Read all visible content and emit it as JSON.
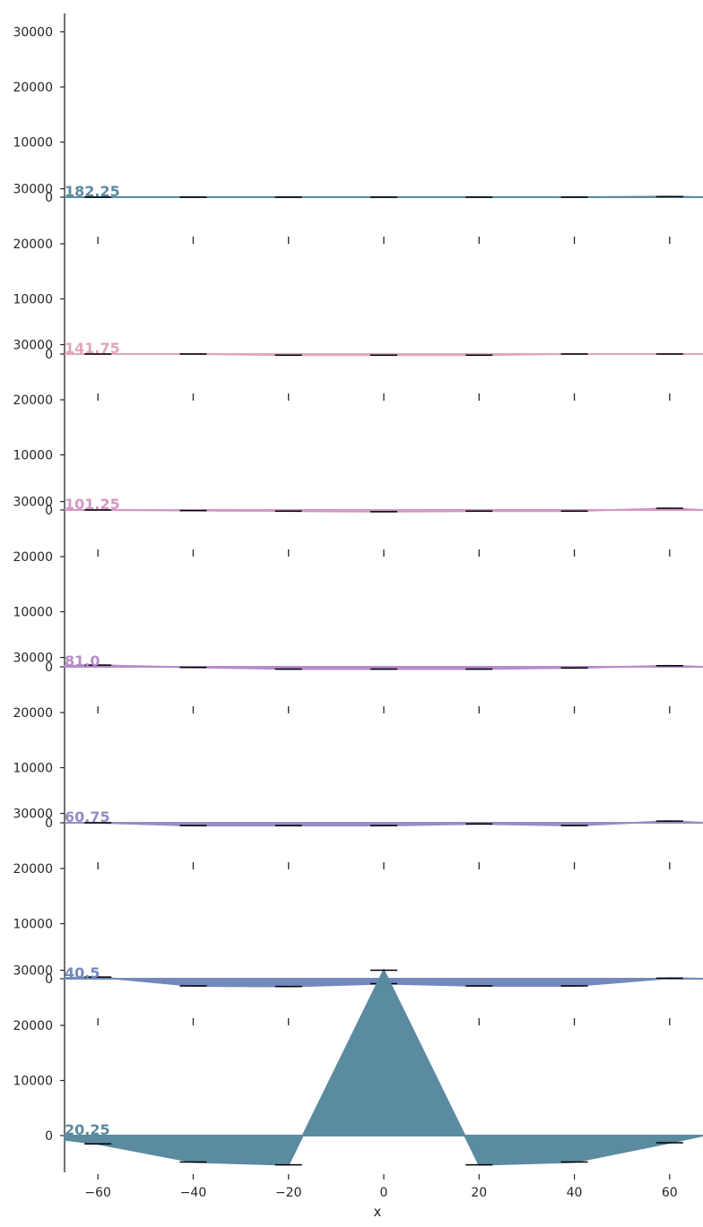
{
  "chart_data": {
    "type": "area",
    "xlabel": "x",
    "x": [
      -60,
      -40,
      -20,
      0,
      20,
      40,
      60
    ],
    "x_ticks": [
      -60,
      -40,
      -20,
      0,
      20,
      40,
      60
    ],
    "x_tick_labels": [
      "−60",
      "−40",
      "−20",
      "0",
      "20",
      "40",
      "60"
    ],
    "xlim": [
      -67,
      67
    ],
    "ylim": [
      -7000,
      33500
    ],
    "y_ticks": [
      0,
      10000,
      20000,
      30000
    ],
    "y_tick_labels": [
      "0",
      "10000",
      "20000",
      "30000"
    ],
    "grid": false,
    "legend": "none",
    "error_bar_color": "#000000",
    "series": [
      {
        "name": "20.25",
        "color": "#5b8ba0",
        "values": [
          -1500,
          -4800,
          -5300,
          30000,
          -5300,
          -4800,
          -1300
        ],
        "errors": [
          0,
          0,
          0,
          0,
          0,
          0,
          0
        ]
      },
      {
        "name": "40.5",
        "color": "#7389bb",
        "values": [
          300,
          -1300,
          -1400,
          -900,
          -1300,
          -1300,
          100
        ],
        "errors": [
          0,
          0,
          0,
          0,
          0,
          0,
          0
        ]
      },
      {
        "name": "60.75",
        "color": "#958dc6",
        "values": [
          0,
          -500,
          -500,
          -500,
          -200,
          -500,
          300
        ],
        "errors": [
          0,
          0,
          0,
          0,
          0,
          0,
          0
        ]
      },
      {
        "name": "81.0",
        "color": "#b78ccb",
        "values": [
          300,
          -100,
          -400,
          -400,
          -400,
          -200,
          200
        ],
        "errors": [
          0,
          0,
          0,
          0,
          0,
          0,
          0
        ]
      },
      {
        "name": "101.25",
        "color": "#d497c4",
        "values": [
          0,
          -100,
          -200,
          -300,
          -200,
          -200,
          300
        ],
        "errors": [
          0,
          0,
          0,
          0,
          0,
          0,
          0
        ]
      },
      {
        "name": "141.75",
        "color": "#dfa7bc",
        "values": [
          0,
          0,
          -200,
          -200,
          -200,
          0,
          0
        ],
        "errors": [
          0,
          0,
          0,
          0,
          0,
          0,
          0
        ]
      },
      {
        "name": "182.25",
        "color": "#5b8ba0",
        "values": [
          0,
          0,
          0,
          0,
          0,
          0,
          100
        ],
        "errors": [
          0,
          0,
          0,
          0,
          0,
          0,
          0
        ]
      }
    ]
  }
}
